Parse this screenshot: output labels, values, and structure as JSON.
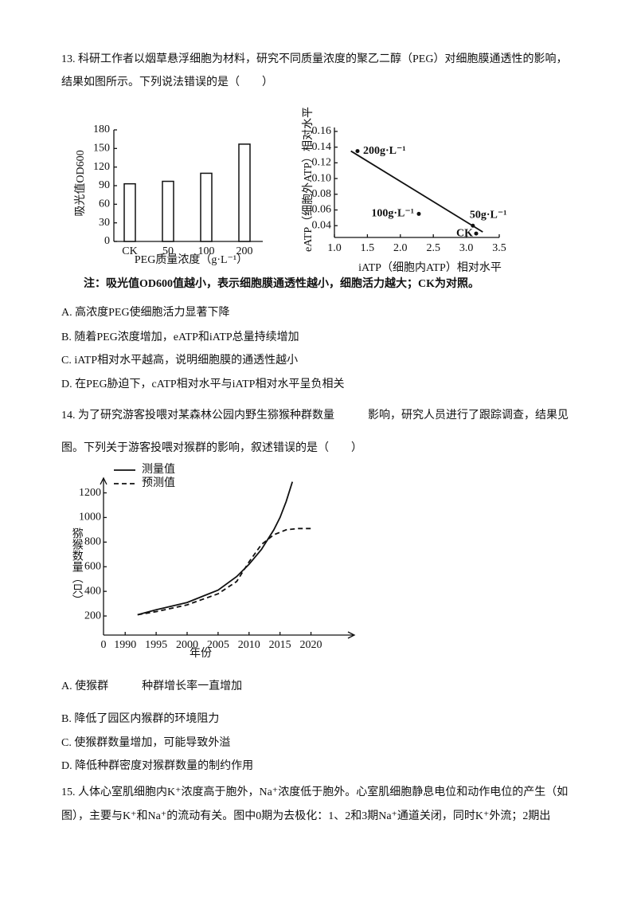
{
  "q13": {
    "stem": [
      "13. 科研工作者以烟草悬浮细胞为材料，研究不同质量浓度的聚乙二醇（PEG）对细胞膜通透性的影响，",
      "结果如图所示。下列说法错误的是（　　）"
    ],
    "note": "注：吸光值OD600值越小，表示细胞膜通透性越小，细胞活力越大；CK为对照。",
    "options": [
      "A. 高浓度PEG使细胞活力显著下降",
      "B. 随着PEG浓度增加，eATP和iATP总量持续增加",
      "C. iATP相对水平越高，说明细胞膜的通透性越小",
      "D. 在PEG胁迫下，cATP相对水平与iATP相对水平呈负相关"
    ]
  },
  "q14": {
    "stem": [
      "14. 为了研究游客投喂对某森林公园内野生猕猴种群数量　　　影响，研究人员进行了跟踪调查，结果见",
      "图。下列关于游客投喂对猴群的影响，叙述错误的是（　　）"
    ],
    "options": [
      "A. 使猴群　　　种群增长率一直增加",
      "B. 降低了园区内猴群的环境阻力",
      "C. 使猴群数量增加，可能导致外溢",
      "D. 降低种群密度对猴群数量的制约作用"
    ]
  },
  "q15": {
    "stem": [
      "15. 人体心室肌细胞内K⁺浓度高于胞外，Na⁺浓度低于胞外。心室肌细胞静息电位和动作电位的产生（如",
      "图），主要与K⁺和Na⁺的流动有关。图中0期为去极化：1、2和3期Na⁺通道关闭，同时K⁺外流；2期出"
    ]
  },
  "chart_data": [
    {
      "type": "bar",
      "ylabel": "吸光值OD600",
      "xlabel": "PEG质量浓度（g·L⁻¹）",
      "categories": [
        "CK",
        "50",
        "100",
        "200"
      ],
      "values": [
        93,
        97,
        110,
        157
      ],
      "color": "#ffffff",
      "ylim": [
        0,
        180
      ],
      "yticks": [
        0,
        30,
        60,
        90,
        120,
        150,
        180
      ]
    },
    {
      "type": "scatter",
      "ylabel": "eATP（细胞外ATP）相对水平",
      "xlabel": "iATP（细胞内ATP）相对水平",
      "x": [
        1.35,
        2.28,
        3.1,
        3.15
      ],
      "values": [
        0.135,
        0.055,
        0.04,
        0.03
      ],
      "point_labels": [
        "200g·L⁻¹",
        "100g·L⁻¹",
        "50g·L⁻¹",
        "CK"
      ],
      "trendline": {
        "x": [
          1.25,
          3.25
        ],
        "y": [
          0.135,
          0.032
        ]
      },
      "xlim": [
        1.0,
        3.5
      ],
      "xticks": [
        {
          "value": 1,
          "label": "1.0"
        },
        1.5,
        {
          "value": 2,
          "label": "2.0"
        },
        2.5,
        {
          "value": 3,
          "label": "3.0"
        },
        3.5
      ],
      "ylim": [
        0.025,
        0.165
      ],
      "yticks": [
        0.04,
        0.06,
        0.08,
        {
          "value": 0.1,
          "label": "0.10"
        },
        0.12,
        0.14,
        0.16
      ]
    },
    {
      "type": "line",
      "ylabel": "猕猴数量（只）",
      "xlabel": "年份",
      "origin_label": "0",
      "series": [
        {
          "name": "测量值",
          "style": "solid",
          "x": [
            1992,
            1995,
            2000,
            2005,
            2008,
            2010,
            2012,
            2014,
            2015,
            2016,
            2017
          ],
          "values": [
            210,
            250,
            310,
            410,
            520,
            620,
            740,
            900,
            1000,
            1130,
            1290
          ]
        },
        {
          "name": "预测值",
          "style": "dashed",
          "x": [
            1992,
            1995,
            2000,
            2005,
            2008,
            2010,
            2012,
            2014,
            2016,
            2018,
            2020
          ],
          "values": [
            210,
            235,
            290,
            380,
            480,
            640,
            780,
            860,
            900,
            910,
            910
          ]
        }
      ],
      "xlim": [
        1986.5,
        2027
      ],
      "xticks": [
        1990,
        1995,
        2000,
        2005,
        2010,
        2015,
        2020
      ],
      "ylim": [
        45,
        1320
      ],
      "yticks": [
        200,
        400,
        600,
        800,
        1000,
        1200
      ]
    }
  ]
}
